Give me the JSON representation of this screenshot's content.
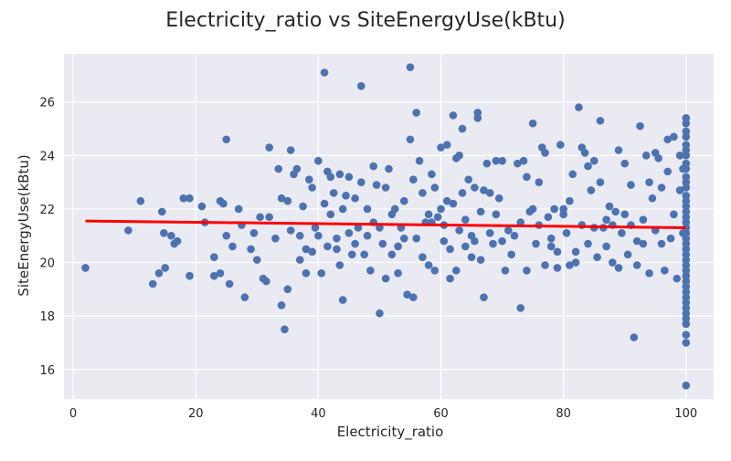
{
  "chart_data": {
    "type": "scatter",
    "title": "Electricity_ratio vs SiteEnergyUse(kBtu)",
    "xlabel": "Electricity_ratio",
    "ylabel": "SiteEnergyUse(kBtu)",
    "xlim": [
      -1.5,
      104.5
    ],
    "ylim": [
      14.9,
      27.8
    ],
    "xticks": [
      0,
      20,
      40,
      60,
      80,
      100
    ],
    "yticks": [
      16,
      18,
      20,
      22,
      24,
      26
    ],
    "grid": true,
    "background": "#eaeaf2",
    "point_color": "#4c72b0",
    "fit_line_color": "#ff0000",
    "fit_line": {
      "x": [
        2,
        100
      ],
      "y": [
        21.55,
        21.3
      ]
    },
    "points": [
      [
        2,
        19.8
      ],
      [
        9,
        21.2
      ],
      [
        11,
        22.3
      ],
      [
        13,
        19.2
      ],
      [
        14,
        19.6
      ],
      [
        14.5,
        21.9
      ],
      [
        15,
        19.8
      ],
      [
        14.8,
        21.1
      ],
      [
        16,
        21.0
      ],
      [
        16.5,
        20.7
      ],
      [
        17,
        20.8
      ],
      [
        18,
        22.4
      ],
      [
        19,
        22.4
      ],
      [
        19,
        19.5
      ],
      [
        21,
        22.1
      ],
      [
        21.5,
        21.5
      ],
      [
        23,
        20.2
      ],
      [
        23,
        19.5
      ],
      [
        24,
        22.3
      ],
      [
        24,
        19.6
      ],
      [
        24.5,
        22.2
      ],
      [
        25,
        24.6
      ],
      [
        25,
        21.0
      ],
      [
        25.5,
        19.2
      ],
      [
        26,
        20.6
      ],
      [
        27,
        22.0
      ],
      [
        27.5,
        21.4
      ],
      [
        28,
        18.7
      ],
      [
        29,
        20.5
      ],
      [
        29.5,
        21.1
      ],
      [
        30,
        20.1
      ],
      [
        30.5,
        21.7
      ],
      [
        31,
        19.4
      ],
      [
        31.5,
        19.3
      ],
      [
        32,
        24.3
      ],
      [
        32,
        21.7
      ],
      [
        33,
        20.9
      ],
      [
        33.5,
        23.5
      ],
      [
        34,
        22.4
      ],
      [
        34,
        18.4
      ],
      [
        34.5,
        17.5
      ],
      [
        35,
        22.3
      ],
      [
        35,
        19.0
      ],
      [
        35.5,
        24.2
      ],
      [
        35.5,
        21.2
      ],
      [
        36,
        23.3
      ],
      [
        36.5,
        23.5
      ],
      [
        37,
        21.0
      ],
      [
        37,
        20.1
      ],
      [
        37.5,
        22.1
      ],
      [
        38,
        20.5
      ],
      [
        38,
        19.6
      ],
      [
        38.5,
        23.1
      ],
      [
        39,
        22.8
      ],
      [
        39,
        20.4
      ],
      [
        39.5,
        21.3
      ],
      [
        40,
        23.8
      ],
      [
        40,
        21.0
      ],
      [
        40.5,
        19.6
      ],
      [
        41,
        22.2
      ],
      [
        41,
        27.1
      ],
      [
        41.5,
        23.4
      ],
      [
        41.5,
        20.6
      ],
      [
        42,
        21.8
      ],
      [
        42,
        23.2
      ],
      [
        42.5,
        22.6
      ],
      [
        43,
        20.9
      ],
      [
        43,
        20.5
      ],
      [
        43.5,
        19.9
      ],
      [
        43.5,
        23.3
      ],
      [
        44,
        22.0
      ],
      [
        44,
        18.6
      ],
      [
        44.5,
        22.5
      ],
      [
        45,
        21.1
      ],
      [
        45,
        23.2
      ],
      [
        45.5,
        20.3
      ],
      [
        46,
        22.4
      ],
      [
        46,
        20.7
      ],
      [
        46.5,
        21.3
      ],
      [
        47,
        26.6
      ],
      [
        47,
        23.0
      ],
      [
        47.5,
        20.3
      ],
      [
        48,
        21.0
      ],
      [
        48,
        22.0
      ],
      [
        48.5,
        19.7
      ],
      [
        49,
        21.5
      ],
      [
        49,
        23.6
      ],
      [
        49.5,
        22.9
      ],
      [
        50,
        21.3
      ],
      [
        50,
        18.1
      ],
      [
        50.5,
        20.7
      ],
      [
        51,
        22.8
      ],
      [
        51,
        19.4
      ],
      [
        51.5,
        23.5
      ],
      [
        52,
        21.8
      ],
      [
        52,
        20.3
      ],
      [
        52.5,
        22.0
      ],
      [
        53,
        19.6
      ],
      [
        53,
        20.6
      ],
      [
        53.5,
        21.3
      ],
      [
        54,
        22.3
      ],
      [
        54,
        20.9
      ],
      [
        54.5,
        18.8
      ],
      [
        55,
        24.6
      ],
      [
        55,
        27.3
      ],
      [
        55.5,
        23.1
      ],
      [
        55.5,
        18.7
      ],
      [
        56,
        25.6
      ],
      [
        56,
        20.9
      ],
      [
        56.5,
        23.8
      ],
      [
        57,
        22.6
      ],
      [
        57,
        20.2
      ],
      [
        57.5,
        21.5
      ],
      [
        58,
        21.8
      ],
      [
        58,
        19.9
      ],
      [
        58.5,
        23.3
      ],
      [
        58.5,
        21.5
      ],
      [
        59,
        22.8
      ],
      [
        59,
        19.7
      ],
      [
        59.5,
        21.7
      ],
      [
        60,
        24.3
      ],
      [
        60,
        22.0
      ],
      [
        60.5,
        21.4
      ],
      [
        60.5,
        20.8
      ],
      [
        61,
        22.3
      ],
      [
        61,
        24.4
      ],
      [
        61.5,
        19.4
      ],
      [
        61.5,
        20.5
      ],
      [
        62,
        25.5
      ],
      [
        62,
        22.2
      ],
      [
        62.5,
        23.9
      ],
      [
        62.5,
        19.7
      ],
      [
        63,
        21.2
      ],
      [
        63,
        24.0
      ],
      [
        63.5,
        25.0
      ],
      [
        63.5,
        22.6
      ],
      [
        64,
        20.6
      ],
      [
        64,
        21.6
      ],
      [
        64.5,
        23.1
      ],
      [
        65,
        21.0
      ],
      [
        65,
        20.2
      ],
      [
        65.5,
        22.8
      ],
      [
        65.5,
        20.8
      ],
      [
        66,
        25.6
      ],
      [
        66,
        25.4
      ],
      [
        66.5,
        21.9
      ],
      [
        66.5,
        20.1
      ],
      [
        67,
        22.7
      ],
      [
        67,
        18.7
      ],
      [
        67.5,
        23.7
      ],
      [
        68,
        21.1
      ],
      [
        68,
        22.6
      ],
      [
        68.5,
        20.7
      ],
      [
        69,
        23.8
      ],
      [
        69,
        21.8
      ],
      [
        69.5,
        22.4
      ],
      [
        70,
        20.8
      ],
      [
        70,
        23.8
      ],
      [
        70.5,
        19.7
      ],
      [
        71,
        21.2
      ],
      [
        71.5,
        20.3
      ],
      [
        72,
        21.0
      ],
      [
        72.5,
        23.7
      ],
      [
        73,
        18.3
      ],
      [
        73,
        21.5
      ],
      [
        73.5,
        23.8
      ],
      [
        74,
        19.7
      ],
      [
        74,
        23.2
      ],
      [
        74.5,
        21.9
      ],
      [
        75,
        25.2
      ],
      [
        75,
        22.0
      ],
      [
        75.5,
        20.7
      ],
      [
        76,
        21.4
      ],
      [
        76,
        23.0
      ],
      [
        76.5,
        24.3
      ],
      [
        77,
        24.1
      ],
      [
        77,
        19.9
      ],
      [
        77.5,
        21.7
      ],
      [
        78,
        20.6
      ],
      [
        78,
        20.9
      ],
      [
        78.5,
        22.0
      ],
      [
        79,
        19.8
      ],
      [
        79,
        20.4
      ],
      [
        79.5,
        24.4
      ],
      [
        80,
        22.0
      ],
      [
        80,
        21.8
      ],
      [
        80.5,
        21.1
      ],
      [
        81,
        19.9
      ],
      [
        81,
        22.3
      ],
      [
        81.5,
        23.3
      ],
      [
        82,
        20.4
      ],
      [
        82,
        20.0
      ],
      [
        82.5,
        25.8
      ],
      [
        83,
        24.3
      ],
      [
        83,
        21.4
      ],
      [
        83.5,
        24.1
      ],
      [
        84,
        20.7
      ],
      [
        84,
        23.6
      ],
      [
        84.5,
        22.7
      ],
      [
        85,
        23.8
      ],
      [
        85,
        21.3
      ],
      [
        85.5,
        20.2
      ],
      [
        86,
        25.3
      ],
      [
        86,
        23.0
      ],
      [
        86.5,
        21.3
      ],
      [
        87,
        21.6
      ],
      [
        87,
        20.6
      ],
      [
        87.5,
        22.1
      ],
      [
        88,
        20.0
      ],
      [
        88,
        21.4
      ],
      [
        88.5,
        21.9
      ],
      [
        89,
        24.2
      ],
      [
        89,
        19.8
      ],
      [
        89.5,
        21.1
      ],
      [
        90,
        21.8
      ],
      [
        90,
        23.7
      ],
      [
        90.5,
        20.3
      ],
      [
        91,
        22.9
      ],
      [
        91,
        21.4
      ],
      [
        91.5,
        17.2
      ],
      [
        92,
        20.8
      ],
      [
        92,
        19.9
      ],
      [
        92.5,
        25.1
      ],
      [
        93,
        21.6
      ],
      [
        93,
        20.7
      ],
      [
        93.5,
        24.0
      ],
      [
        94,
        19.6
      ],
      [
        94,
        23.0
      ],
      [
        94.5,
        22.4
      ],
      [
        95,
        21.2
      ],
      [
        95,
        24.1
      ],
      [
        95.5,
        23.9
      ],
      [
        96,
        22.8
      ],
      [
        96,
        20.7
      ],
      [
        96.5,
        19.7
      ],
      [
        97,
        24.6
      ],
      [
        97,
        23.4
      ],
      [
        97.5,
        20.9
      ],
      [
        98,
        24.7
      ],
      [
        98,
        21.8
      ],
      [
        98.5,
        19.4
      ],
      [
        99,
        24.0
      ],
      [
        99,
        22.7
      ],
      [
        99.5,
        21.1
      ],
      [
        99.5,
        23.5
      ],
      [
        100,
        25.4
      ],
      [
        100,
        25.2
      ],
      [
        100,
        24.9
      ],
      [
        100,
        24.7
      ],
      [
        100,
        24.4
      ],
      [
        100,
        24.2
      ],
      [
        100,
        24.0
      ],
      [
        100,
        23.7
      ],
      [
        100,
        23.5
      ],
      [
        100,
        23.2
      ],
      [
        100,
        23.0
      ],
      [
        100,
        22.8
      ],
      [
        100,
        22.5
      ],
      [
        100,
        22.3
      ],
      [
        100,
        22.1
      ],
      [
        100,
        21.9
      ],
      [
        100,
        21.7
      ],
      [
        100,
        21.5
      ],
      [
        100,
        21.3
      ],
      [
        100,
        21.1
      ],
      [
        100,
        20.9
      ],
      [
        100,
        20.7
      ],
      [
        100,
        20.5
      ],
      [
        100,
        20.3
      ],
      [
        100,
        20.1
      ],
      [
        100,
        19.9
      ],
      [
        100,
        19.7
      ],
      [
        100,
        19.5
      ],
      [
        100,
        19.3
      ],
      [
        100,
        19.1
      ],
      [
        100,
        18.9
      ],
      [
        100,
        18.7
      ],
      [
        100,
        18.5
      ],
      [
        100,
        18.3
      ],
      [
        100,
        18.1
      ],
      [
        100,
        17.9
      ],
      [
        100,
        17.7
      ],
      [
        100,
        17.3
      ],
      [
        100,
        17.0
      ],
      [
        100,
        15.4
      ]
    ]
  }
}
